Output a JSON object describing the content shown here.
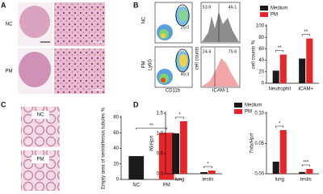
{
  "panels": {
    "A": {
      "label": "A",
      "rows": [
        "NC",
        "PM"
      ]
    },
    "B": {
      "label": "B",
      "rows": [
        "NC",
        "PM"
      ],
      "dot_gates": [
        "25.0",
        "49.3"
      ],
      "hist_gates": [
        [
          "53.9",
          "46.1"
        ],
        [
          "24.4",
          "75.6"
        ]
      ],
      "x_label": "CD11b",
      "y_label": "Ly6G",
      "hist_x_label": "ICAM-1",
      "hist_y_label": "cell counts"
    },
    "C": {
      "label": "C",
      "rows": [
        "NC",
        "PM"
      ]
    },
    "D": {
      "label": "D"
    }
  },
  "chart_data": [
    {
      "type": "bar",
      "categories": [
        "Neutrophil",
        "ICAM+"
      ],
      "series": [
        {
          "name": "Medium",
          "color": "#1a1a1a",
          "values": [
            22,
            43
          ]
        },
        {
          "name": "PM",
          "color": "#e8262a",
          "values": [
            50,
            78
          ]
        }
      ],
      "ylabel": "cell counts %",
      "ylim": [
        0,
        100
      ],
      "yticks": [
        0,
        20,
        40,
        60,
        80,
        100
      ],
      "significance": [
        "**",
        "**"
      ],
      "legend": "upper left"
    },
    {
      "type": "bar",
      "categories": [
        "NC",
        "PM"
      ],
      "values": [
        30,
        60
      ],
      "colors": [
        "#1a1a1a",
        "#e8262a"
      ],
      "ylabel": "Empty area of seminiferous tubules %",
      "ylim": [
        0,
        80
      ],
      "yticks": [
        0,
        20,
        40,
        60,
        80
      ],
      "significance": "**"
    },
    {
      "type": "bar",
      "categories": [
        "lung",
        "testis"
      ],
      "series": [
        {
          "name": "Medium",
          "color": "#1a1a1a",
          "values": [
            1.0,
            0.04
          ]
        },
        {
          "name": "PM",
          "color": "#e8262a",
          "values": [
            1.3,
            0.08
          ]
        }
      ],
      "ylabel": "Il6/Hprt",
      "ylim": [
        0,
        1.5
      ],
      "yticks": [
        {
          "value": 0,
          "label": "0.0"
        },
        {
          "value": 0.5,
          "label": "0.5"
        },
        {
          "value": 1,
          "label": "1.0"
        },
        {
          "value": 1.5,
          "label": "1.5"
        }
      ],
      "significance": [
        "*",
        "*"
      ]
    },
    {
      "type": "bar",
      "categories": [
        "lung",
        "testis"
      ],
      "series": [
        {
          "name": "Medium",
          "color": "#1a1a1a",
          "values": [
            0.02,
            0.003
          ]
        },
        {
          "name": "PM",
          "color": "#e8262a",
          "values": [
            0.072,
            0.008
          ]
        }
      ],
      "ylabel": "Tnfa/Hprt",
      "ylim": [
        0,
        0.1
      ],
      "yticks": [
        {
          "value": 0,
          "label": "0.00"
        },
        {
          "value": 0.05,
          "label": "0.05"
        },
        {
          "value": 0.1,
          "label": "0.10"
        }
      ],
      "significance": [
        "*",
        "***"
      ],
      "legend": "upper left"
    }
  ]
}
